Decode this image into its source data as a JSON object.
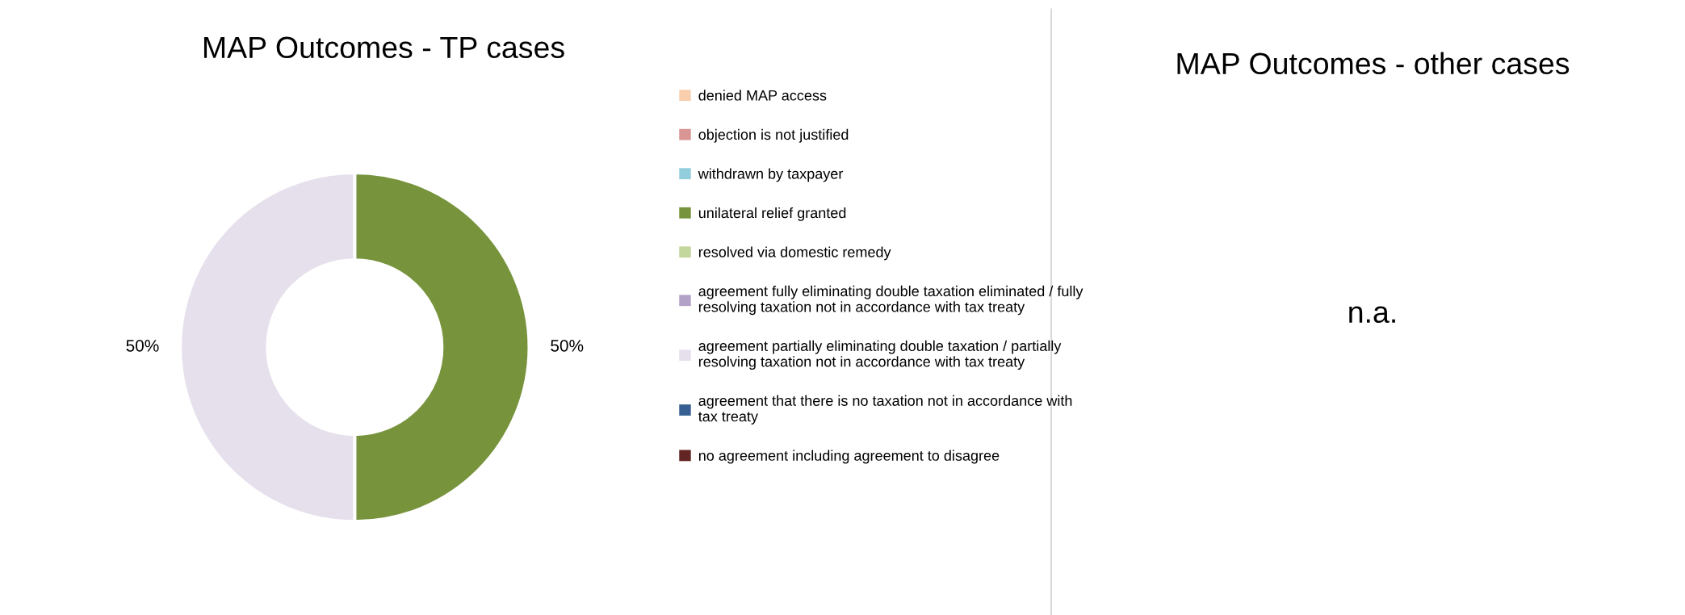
{
  "chart_data": [
    {
      "type": "donut",
      "title": "MAP Outcomes - TP cases",
      "categories": [
        "denied MAP access",
        "objection is not justified",
        "withdrawn by taxpayer",
        "unilateral relief granted",
        "resolved via domestic remedy",
        "agreement fully eliminating double taxation eliminated / fully resolving taxation not in accordance with tax treaty",
        "agreement partially eliminating double taxation / partially resolving taxation not in accordance with tax treaty",
        "agreement that there is no taxation not in accordance with tax treaty",
        "no agreement including agreement to disagree"
      ],
      "values": [
        0,
        0,
        0,
        50,
        0,
        0,
        50,
        0,
        0
      ],
      "colors": [
        "#f9cfae",
        "#d99594",
        "#92cddc",
        "#77933c",
        "#c3d69b",
        "#b3a2c7",
        "#e6e0ec",
        "#366092",
        "#632523"
      ],
      "value_labels": [
        null,
        null,
        null,
        "50%",
        null,
        null,
        "50%",
        null,
        null
      ],
      "legend": "right"
    },
    {
      "type": "other",
      "title": "MAP Outcomes - other cases",
      "annotations": [
        "n.a."
      ]
    }
  ]
}
